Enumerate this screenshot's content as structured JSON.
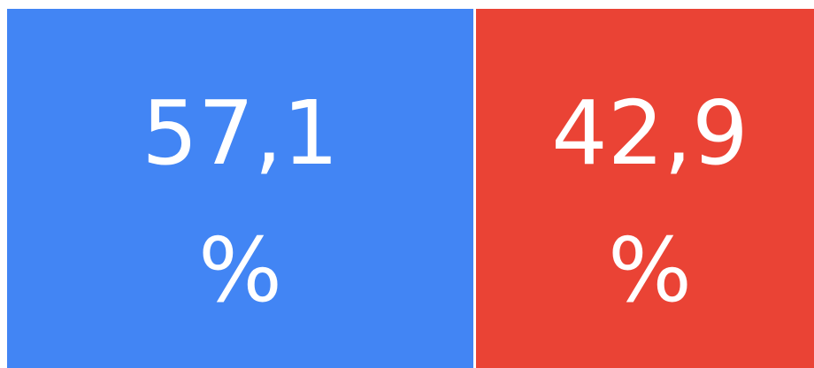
{
  "chart_data": {
    "type": "stacked-bar-100",
    "values": [
      57.1,
      42.9
    ],
    "value_labels": [
      "57,1 %",
      "42,9 %"
    ],
    "colors": [
      "#4285f4",
      "#ea4335"
    ]
  }
}
